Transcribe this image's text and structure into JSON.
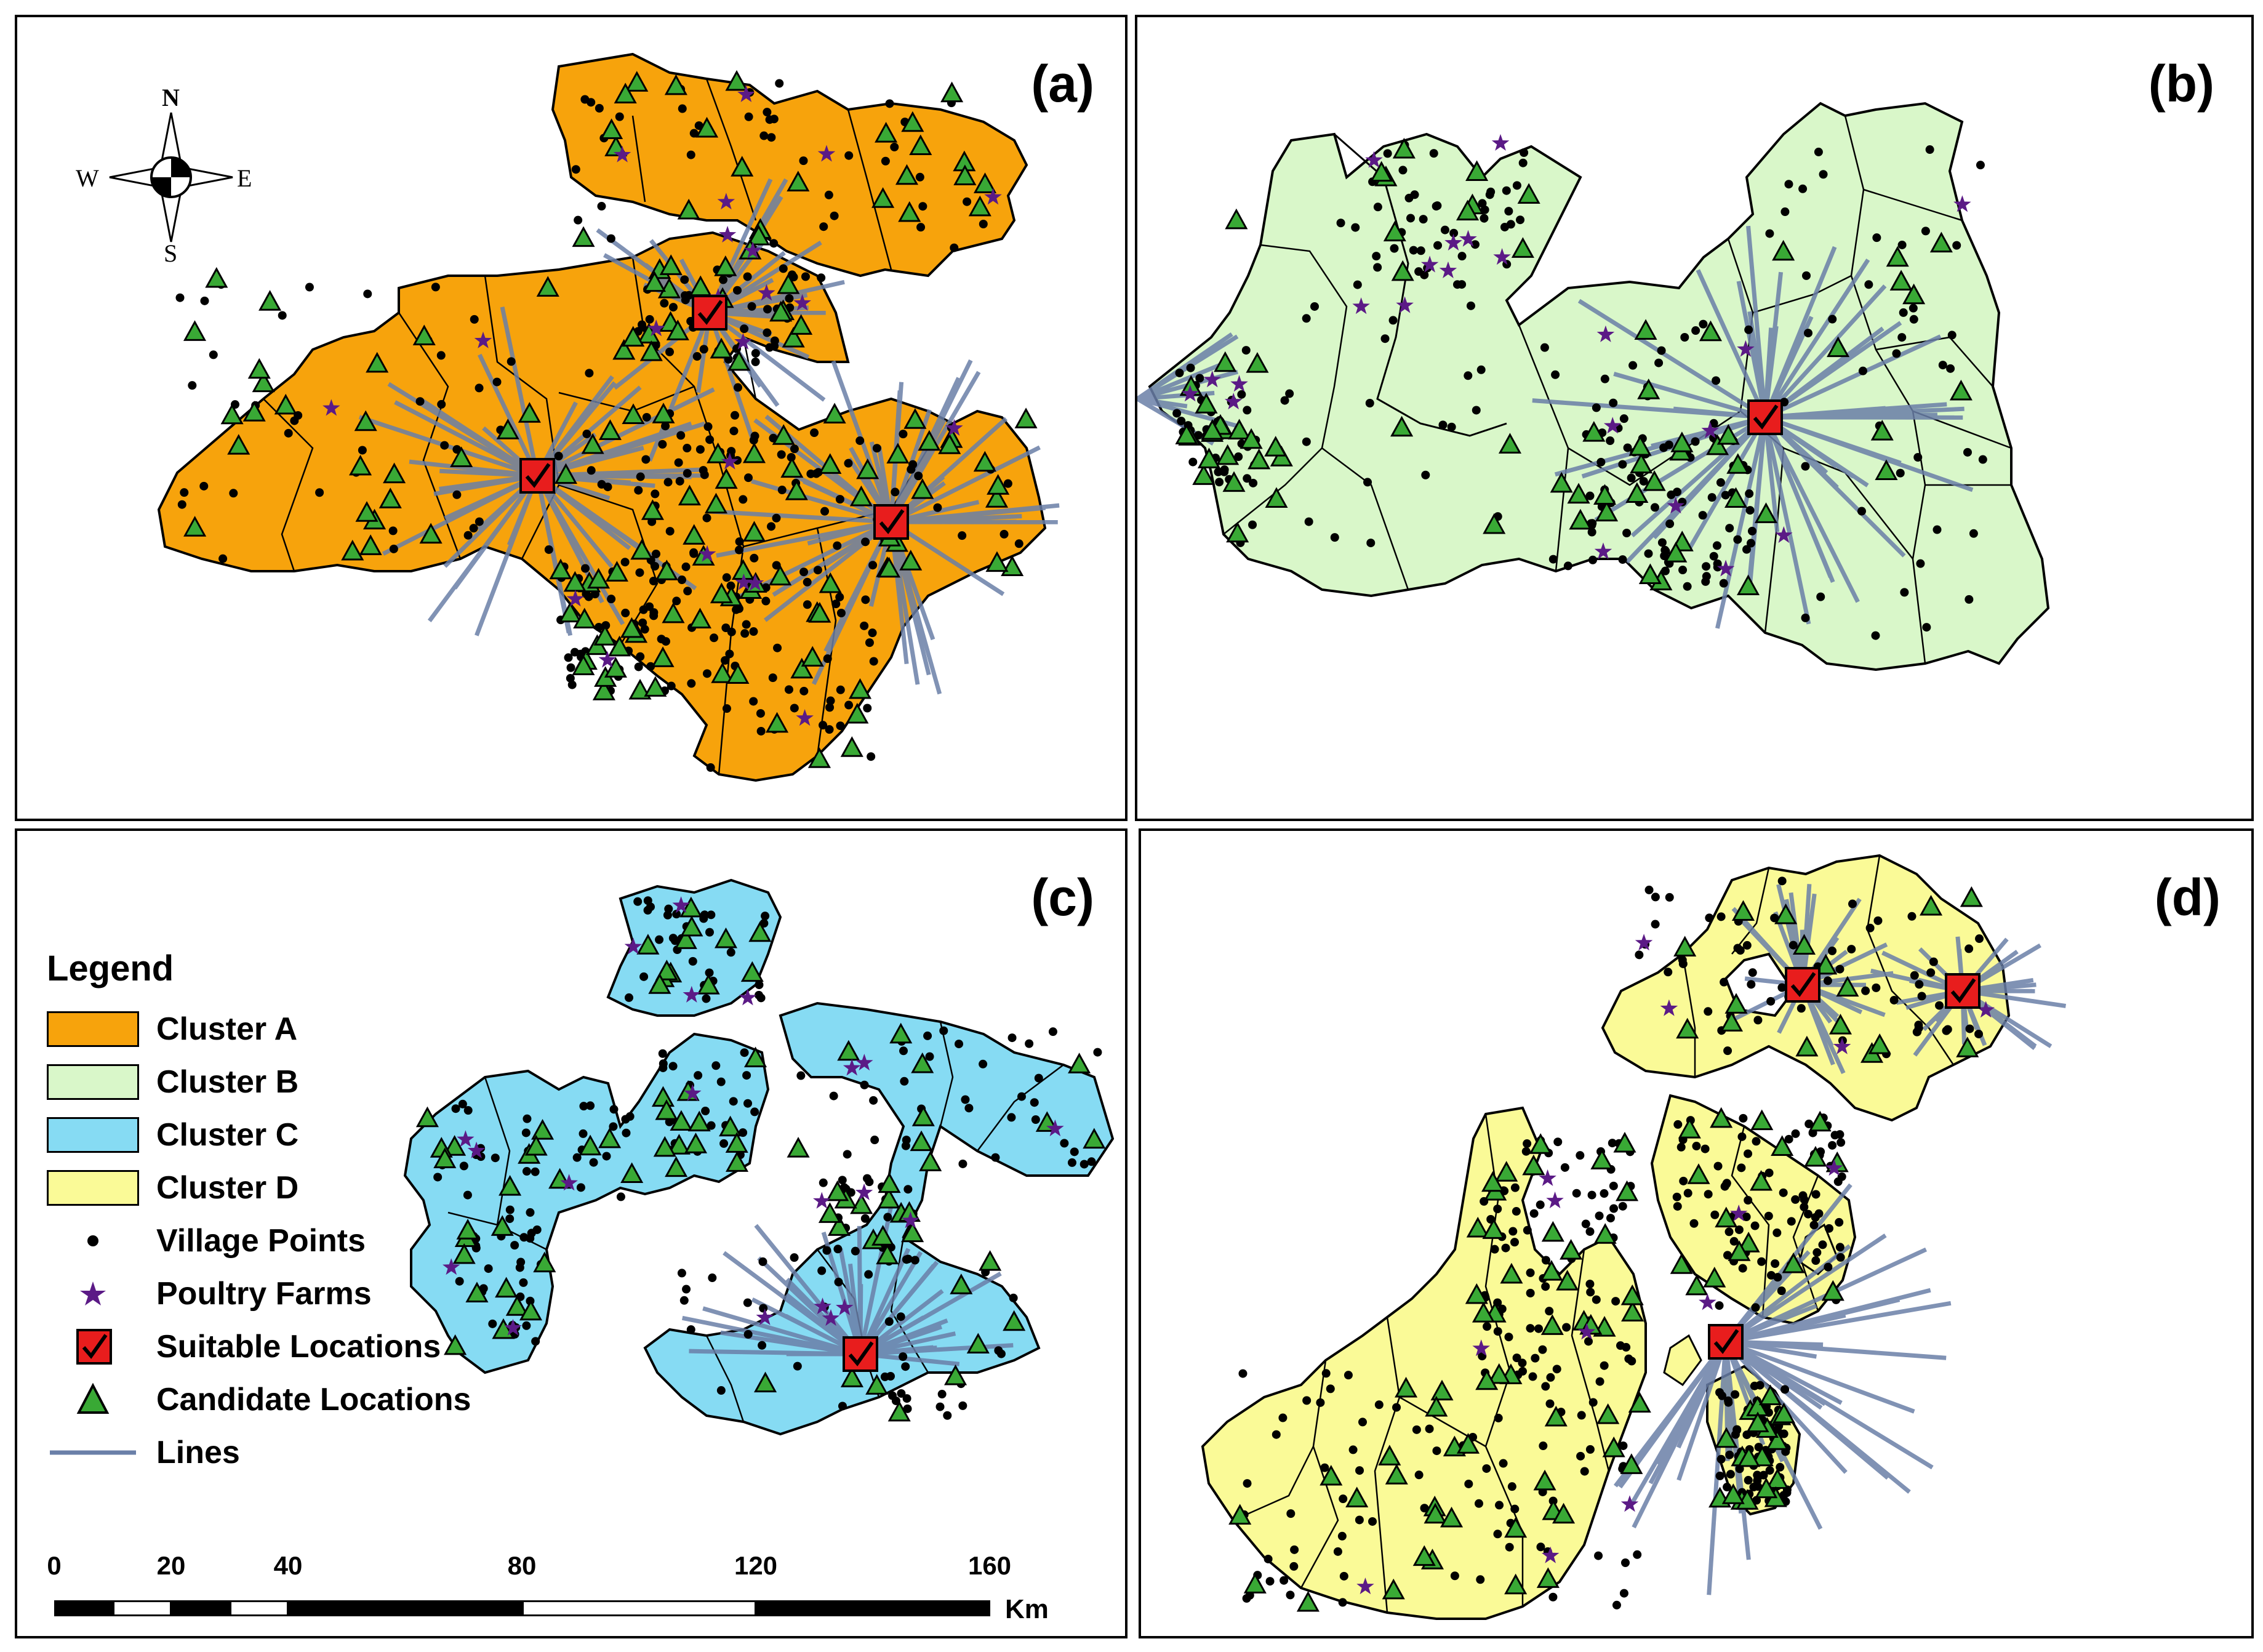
{
  "colors": {
    "cluster_a": "#f7a30c",
    "cluster_b": "#d9f7c9",
    "cluster_c": "#86dbf3",
    "cluster_d": "#fafa97",
    "village": "#000000",
    "poultry": "#5b1a86",
    "suitable": "#e81d1d",
    "candidate": "#39a935",
    "lines": "#6a7fa8"
  },
  "panels": {
    "a": {
      "label": "(a)"
    },
    "b": {
      "label": "(b)"
    },
    "c": {
      "label": "(c)"
    },
    "d": {
      "label": "(d)"
    }
  },
  "compass": {
    "n": "N",
    "s": "S",
    "e": "E",
    "w": "W"
  },
  "legend": {
    "title": "Legend",
    "items": [
      {
        "label": "Cluster A",
        "symbol": "box-cluster-a"
      },
      {
        "label": "Cluster B",
        "symbol": "box-cluster-b"
      },
      {
        "label": "Cluster C",
        "symbol": "box-cluster-c"
      },
      {
        "label": "Cluster D",
        "symbol": "box-cluster-d"
      },
      {
        "label": "Village Points",
        "symbol": "dot-icon"
      },
      {
        "label": "Poultry Farms",
        "symbol": "star-icon"
      },
      {
        "label": "Suitable Locations",
        "symbol": "checkbox-icon"
      },
      {
        "label": "Candidate Locations",
        "symbol": "triangle-icon"
      },
      {
        "label": "Lines",
        "symbol": "line-icon"
      }
    ]
  },
  "scale": {
    "ticks": [
      "0",
      "20",
      "40",
      "80",
      "120",
      "160"
    ],
    "unit": "Km"
  }
}
